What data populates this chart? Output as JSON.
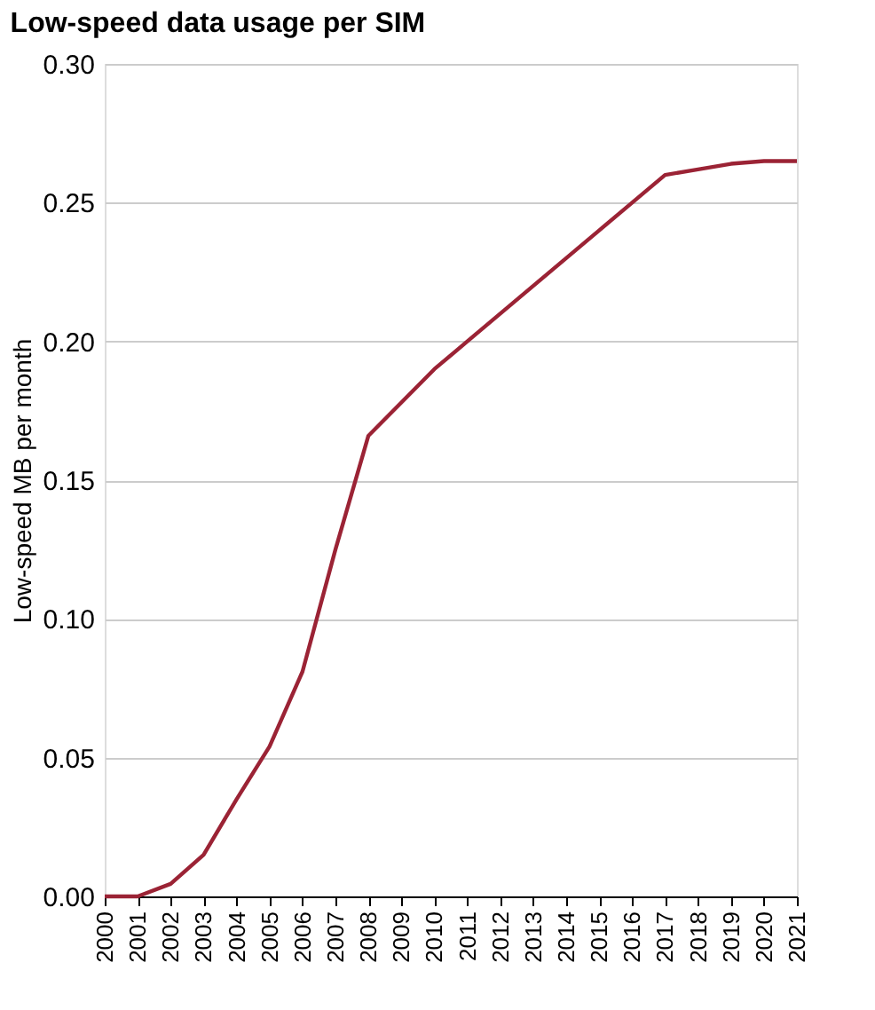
{
  "chart_data": {
    "type": "line",
    "title": "Low-speed data usage per SIM",
    "ylabel": "Low-speed MB per month",
    "categories": [
      "2000",
      "2001",
      "2002",
      "2003",
      "2004",
      "2005",
      "2006",
      "2007",
      "2008",
      "2009",
      "2010",
      "2011",
      "2012",
      "2013",
      "2014",
      "2015",
      "2016",
      "2017",
      "2018",
      "2019",
      "2020",
      "2021"
    ],
    "series": [
      {
        "color": "#9b2335",
        "values": [
          0,
          0,
          0.0045,
          0.015,
          0.035,
          0.054,
          0.081,
          0.125,
          0.166,
          0.178,
          0.19,
          0.2,
          0.21,
          0.22,
          0.23,
          0.24,
          0.25,
          0.26,
          0.262,
          0.264,
          0.265,
          0.265
        ]
      }
    ],
    "ylim": [
      0,
      0.3
    ],
    "yticks": [
      {
        "value": 0,
        "label": "0.00"
      },
      {
        "value": 0.05,
        "label": "0.05"
      },
      {
        "value": 0.1,
        "label": "0.10"
      },
      {
        "value": 0.15,
        "label": "0.15"
      },
      {
        "value": 0.2,
        "label": "0.20"
      },
      {
        "value": 0.25,
        "label": "0.25"
      },
      {
        "value": 0.3,
        "label": "0.30"
      }
    ],
    "grid": "y",
    "marker": "none",
    "line_style": "solid"
  }
}
